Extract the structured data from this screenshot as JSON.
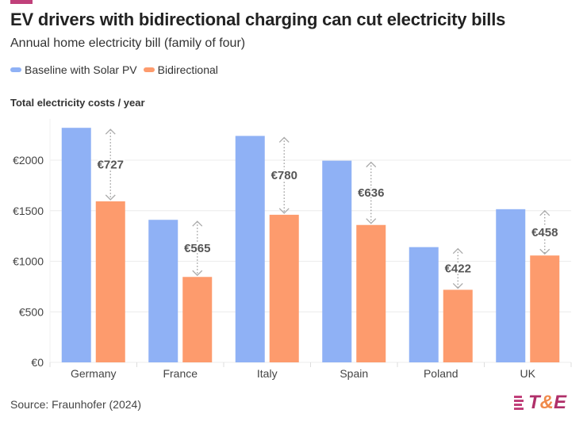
{
  "title": "EV drivers with bidirectional charging can cut electricity bills",
  "subtitle": "Annual home electricity bill (family of four)",
  "source": "Source: Fraunhofer (2024)",
  "logo": {
    "text": "T&E",
    "colors": [
      "#b0306a",
      "#f08a4b"
    ]
  },
  "chart_data": {
    "type": "bar",
    "title": "EV drivers with bidirectional charging can cut electricity bills",
    "ylabel": "Total electricity costs / year",
    "categories": [
      "Germany",
      "France",
      "Italy",
      "Spain",
      "Poland",
      "UK"
    ],
    "series": [
      {
        "name": "Baseline with Solar PV",
        "color": "#8fb1f5",
        "values": [
          2320,
          1410,
          2240,
          1995,
          1140,
          1515
        ]
      },
      {
        "name": "Bidirectional",
        "color": "#fd9b6d",
        "values": [
          1593,
          845,
          1460,
          1359,
          718,
          1057
        ]
      }
    ],
    "savings_labels": [
      "€727",
      "€565",
      "€780",
      "€636",
      "€422",
      "€458"
    ],
    "ylim": [
      0,
      2400
    ],
    "yticks": [
      0,
      500,
      1000,
      1500,
      2000
    ],
    "ytick_labels": [
      "€0",
      "€500",
      "€1000",
      "€1500",
      "€2000"
    ],
    "grid": true,
    "legend": "top-left"
  }
}
